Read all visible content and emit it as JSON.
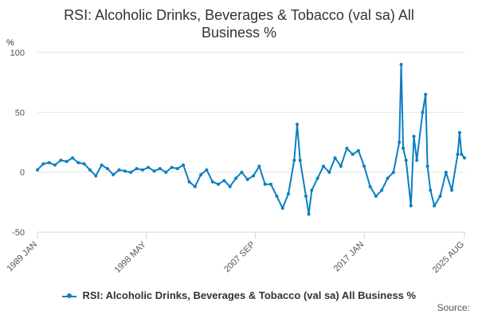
{
  "chart_data": {
    "type": "line",
    "title": "RSI: Alcoholic Drinks, Beverages & Tobacco (val sa) All Business %",
    "ylabel": "%",
    "xlabel": "",
    "ylim": [
      -50,
      100
    ],
    "y_ticks": [
      -50,
      0,
      50,
      100
    ],
    "x_ticks": [
      "1989 JAN",
      "1998 MAY",
      "2007 SEP",
      "2017 JAN",
      "2025 AUG"
    ],
    "x_range": [
      "1989-01",
      "2025-08"
    ],
    "grid": true,
    "legend_position": "bottom",
    "series": [
      {
        "name": "RSI: Alcoholic Drinks, Beverages & Tobacco (val sa) All Business %",
        "color": "#0a7fc0",
        "points": [
          [
            "1989-01",
            2
          ],
          [
            "1989-07",
            7
          ],
          [
            "1990-01",
            8
          ],
          [
            "1990-07",
            6
          ],
          [
            "1991-01",
            10
          ],
          [
            "1991-07",
            9
          ],
          [
            "1992-01",
            12
          ],
          [
            "1992-07",
            8
          ],
          [
            "1993-01",
            7
          ],
          [
            "1993-07",
            2
          ],
          [
            "1994-01",
            -3
          ],
          [
            "1994-07",
            6
          ],
          [
            "1995-01",
            3
          ],
          [
            "1995-07",
            -2
          ],
          [
            "1996-01",
            2
          ],
          [
            "1996-07",
            1
          ],
          [
            "1997-01",
            0
          ],
          [
            "1997-07",
            3
          ],
          [
            "1998-01",
            2
          ],
          [
            "1998-07",
            4
          ],
          [
            "1999-01",
            1
          ],
          [
            "1999-07",
            3
          ],
          [
            "2000-01",
            0
          ],
          [
            "2000-07",
            4
          ],
          [
            "2001-01",
            3
          ],
          [
            "2001-07",
            6
          ],
          [
            "2002-01",
            -8
          ],
          [
            "2002-07",
            -12
          ],
          [
            "2003-01",
            -2
          ],
          [
            "2003-07",
            2
          ],
          [
            "2004-01",
            -8
          ],
          [
            "2004-07",
            -10
          ],
          [
            "2005-01",
            -7
          ],
          [
            "2005-07",
            -12
          ],
          [
            "2006-01",
            -5
          ],
          [
            "2006-07",
            0
          ],
          [
            "2007-01",
            -6
          ],
          [
            "2007-07",
            -3
          ],
          [
            "2008-01",
            5
          ],
          [
            "2008-07",
            -10
          ],
          [
            "2009-01",
            -10
          ],
          [
            "2009-07",
            -20
          ],
          [
            "2010-01",
            -30
          ],
          [
            "2010-07",
            -18
          ],
          [
            "2011-01",
            10
          ],
          [
            "2011-04",
            40
          ],
          [
            "2011-07",
            10
          ],
          [
            "2012-01",
            -20
          ],
          [
            "2012-04",
            -35
          ],
          [
            "2012-07",
            -15
          ],
          [
            "2013-01",
            -5
          ],
          [
            "2013-07",
            5
          ],
          [
            "2014-01",
            0
          ],
          [
            "2014-07",
            12
          ],
          [
            "2015-01",
            5
          ],
          [
            "2015-07",
            20
          ],
          [
            "2016-01",
            15
          ],
          [
            "2016-07",
            18
          ],
          [
            "2017-01",
            5
          ],
          [
            "2017-07",
            -12
          ],
          [
            "2018-01",
            -20
          ],
          [
            "2018-07",
            -15
          ],
          [
            "2019-01",
            -5
          ],
          [
            "2019-07",
            0
          ],
          [
            "2020-01",
            25
          ],
          [
            "2020-03",
            90
          ],
          [
            "2020-05",
            20
          ],
          [
            "2020-08",
            10
          ],
          [
            "2021-01",
            -28
          ],
          [
            "2021-04",
            30
          ],
          [
            "2021-07",
            10
          ],
          [
            "2022-01",
            50
          ],
          [
            "2022-04",
            65
          ],
          [
            "2022-06",
            5
          ],
          [
            "2022-09",
            -15
          ],
          [
            "2023-01",
            -28
          ],
          [
            "2023-07",
            -20
          ],
          [
            "2024-01",
            0
          ],
          [
            "2024-07",
            -15
          ],
          [
            "2025-01",
            15
          ],
          [
            "2025-03",
            33
          ],
          [
            "2025-05",
            15
          ],
          [
            "2025-08",
            12
          ]
        ]
      }
    ]
  },
  "source_label": "Source:"
}
